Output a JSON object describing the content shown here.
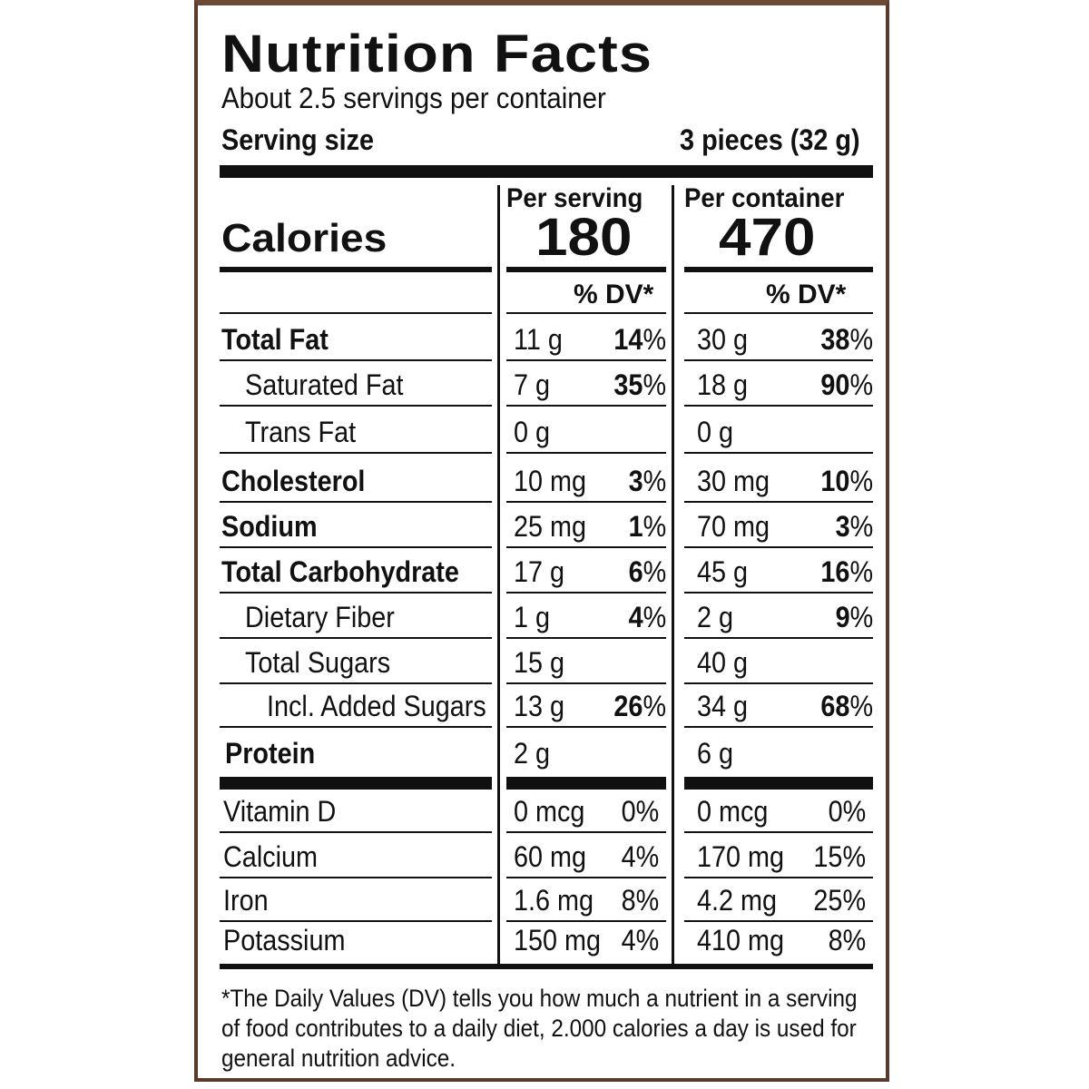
{
  "title": "Nutrition Facts",
  "servings_per_container": "About 2.5 servings per container",
  "serving_size_label": "Serving size",
  "serving_size_value": "3 pieces (32 g)",
  "calories_label": "Calories",
  "per_serving_label": "Per serving",
  "per_container_label": "Per container",
  "calories_per_serving": "180",
  "calories_per_container": "470",
  "dv_header": "% DV*",
  "nutrients": [
    {
      "label": "Total Fat",
      "bold": true,
      "indent": 0,
      "serving_amt": "11 g",
      "serving_pct": "14",
      "container_amt": "30 g",
      "container_pct": "38"
    },
    {
      "label": "Saturated Fat",
      "bold": false,
      "indent": 1,
      "serving_amt": "7 g",
      "serving_pct": "35",
      "container_amt": "18 g",
      "container_pct": "90"
    },
    {
      "label": "Trans Fat",
      "bold": false,
      "indent": 1,
      "serving_amt": "0 g",
      "serving_pct": "",
      "container_amt": "0 g",
      "container_pct": ""
    },
    {
      "label": "Cholesterol",
      "bold": true,
      "indent": 0,
      "serving_amt": "10 mg",
      "serving_pct": "3",
      "container_amt": "30 mg",
      "container_pct": "10"
    },
    {
      "label": "Sodium",
      "bold": true,
      "indent": 0,
      "serving_amt": "25 mg",
      "serving_pct": "1",
      "container_amt": "70 mg",
      "container_pct": "3"
    },
    {
      "label": "Total Carbohydrate",
      "bold": true,
      "indent": 0,
      "serving_amt": "17 g",
      "serving_pct": "6",
      "container_amt": "45 g",
      "container_pct": "16"
    },
    {
      "label": "Dietary Fiber",
      "bold": false,
      "indent": 1,
      "serving_amt": "1 g",
      "serving_pct": "4",
      "container_amt": "2 g",
      "container_pct": "9"
    },
    {
      "label": "Total Sugars",
      "bold": false,
      "indent": 1,
      "serving_amt": "15 g",
      "serving_pct": "",
      "container_amt": "40 g",
      "container_pct": ""
    },
    {
      "label": "Incl. Added Sugars",
      "bold": false,
      "indent": 2,
      "serving_amt": "13 g",
      "serving_pct": "26",
      "container_amt": "34 g",
      "container_pct": "68"
    },
    {
      "label": "Protein",
      "bold": true,
      "indent": 0,
      "serving_amt": "2 g",
      "serving_pct": "",
      "container_amt": "6 g",
      "container_pct": ""
    }
  ],
  "vitamins": [
    {
      "label": "Vitamin D",
      "serving_amt": "0 mcg",
      "serving_pct": "0%",
      "container_amt": "0 mcg",
      "container_pct": "0%"
    },
    {
      "label": "Calcium",
      "serving_amt": "60 mg",
      "serving_pct": "4%",
      "container_amt": "170 mg",
      "container_pct": "15%"
    },
    {
      "label": "Iron",
      "serving_amt": "1.6 mg",
      "serving_pct": "8%",
      "container_amt": "4.2 mg",
      "container_pct": "25%"
    },
    {
      "label": "Potassium",
      "serving_amt": "150 mg",
      "serving_pct": "4%",
      "container_amt": "410 mg",
      "container_pct": "8%"
    }
  ],
  "footnote": "*The Daily Values (DV) tells you how much a nutrient in a serving of food contributes to a daily diet, 2.000 calories a day is used for general nutrition advice.",
  "colors": {
    "border": "#5a3a2a",
    "ink": "#111111",
    "background": "#ffffff"
  }
}
